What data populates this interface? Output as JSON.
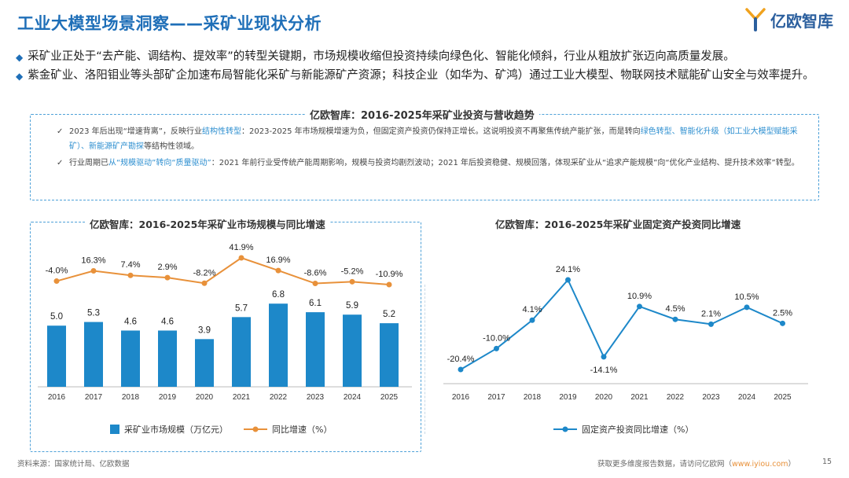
{
  "header": {
    "title": "工业大模型场景洞察——采矿业现状分析",
    "logo_text": "亿欧智库"
  },
  "bullets": [
    "采矿业正处于“去产能、调结构、提效率”的转型关键期，市场规模收缩但投资持续向绿色化、智能化倾斜，行业从粗放扩张迈向高质量发展。",
    "紫金矿业、洛阳钼业等头部矿企加速布局智能化采矿与新能源矿产资源；科技企业（如华为、矿鸿）通过工业大模型、物联网技术赋能矿山安全与效率提升。"
  ],
  "trend_box": {
    "title": "亿欧智库：2016-2025年采矿业投资与营收趋势",
    "note1": {
      "p1": "2023 年后出现“增速背离”，反映行业",
      "h1": "结构性转型",
      "p2": "：2023-2025 年市场规模增速为负，但固定资产投资仍保持正增长。这说明投资不再聚焦传统产能扩张，而是转向",
      "h2": "绿色转型、智能化升级（如工业大模型赋能采矿）、新能源矿产勘探",
      "p3": "等结构性领域。"
    },
    "note2": {
      "p1": "行业周期已",
      "h1": "从“规模驱动”转向“质量驱动”",
      "p2": "：2021 年前行业受传统产能周期影响，规模与投资均剧烈波动；2021 年后投资稳健、规模回落，体现采矿业从“追求产能规模”向“优化产业结构、提升技术效率”转型。"
    }
  },
  "colors": {
    "primary": "#1f6fb8",
    "bar": "#1d88c9",
    "orange_line": "#e8913a",
    "blue_line": "#1d88c9",
    "dash": "#4ea1d8",
    "highlight": "#2e8fd0"
  },
  "chart_data": [
    {
      "type": "bar",
      "title": "亿欧智库：2016-2025年采矿业市场规模与同比增速",
      "categories": [
        "2016",
        "2017",
        "2018",
        "2019",
        "2020",
        "2021",
        "2022",
        "2023",
        "2024",
        "2025"
      ],
      "series": [
        {
          "name": "采矿业市场规模（万亿元）",
          "type": "bar",
          "values": [
            5.0,
            5.3,
            4.6,
            4.6,
            3.9,
            5.7,
            6.8,
            6.1,
            5.9,
            5.2
          ],
          "labels": [
            "5.0",
            "5.3",
            "4.6",
            "4.6",
            "3.9",
            "5.7",
            "6.8",
            "6.1",
            "5.9",
            "5.2"
          ]
        },
        {
          "name": "同比增速（%）",
          "type": "line",
          "values": [
            -4.0,
            16.3,
            7.4,
            2.9,
            -8.2,
            41.9,
            16.9,
            -8.6,
            -5.2,
            -10.9
          ],
          "labels": [
            "-4.0%",
            "16.3%",
            "7.4%",
            "2.9%",
            "-8.2%",
            "41.9%",
            "16.9%",
            "-8.6%",
            "-5.2%",
            "-10.9%"
          ]
        }
      ],
      "legend_position": "bottom"
    },
    {
      "type": "line",
      "title": "亿欧智库：2016-2025年采矿业固定资产投资同比增速",
      "categories": [
        "2016",
        "2017",
        "2018",
        "2019",
        "2020",
        "2021",
        "2022",
        "2023",
        "2024",
        "2025"
      ],
      "series": [
        {
          "name": "固定资产投资同比增速（%）",
          "values": [
            -20.4,
            -10.0,
            4.1,
            24.1,
            -14.1,
            10.9,
            4.5,
            2.1,
            10.5,
            2.5
          ],
          "labels": [
            "-20.4%",
            "-10.0%",
            "4.1%",
            "24.1%",
            "-14.1%",
            "10.9%",
            "4.5%",
            "2.1%",
            "10.5%",
            "2.5%"
          ]
        }
      ],
      "legend_position": "bottom"
    }
  ],
  "footer": {
    "source": "资料来源：国家统计局、亿欧数据",
    "cta_prefix": "获取更多维度报告数据，请访问亿欧网（",
    "cta_link": "www.iyiou.com",
    "cta_suffix": "）",
    "page_number": "15"
  }
}
